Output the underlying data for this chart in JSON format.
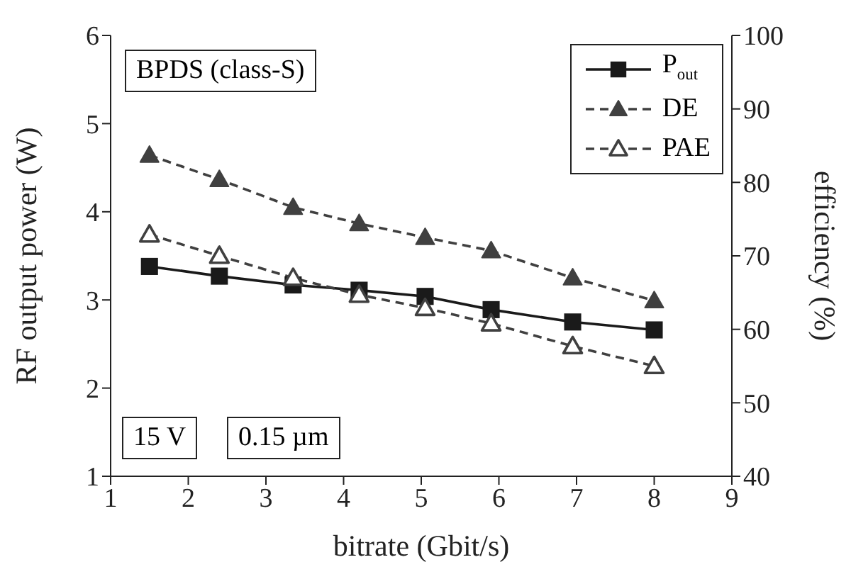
{
  "chart_data": {
    "type": "line",
    "xlabel": "bitrate (Gbit/s)",
    "ylabel": "RF output power (W)",
    "y2label": "efficiency (%)",
    "xlim": [
      1,
      9
    ],
    "xticks": [
      1,
      2,
      3,
      4,
      5,
      6,
      7,
      8,
      9
    ],
    "ylim": [
      1,
      6
    ],
    "yticks": [
      1,
      2,
      3,
      4,
      5,
      6
    ],
    "y2lim": [
      40,
      100
    ],
    "y2ticks": [
      40,
      50,
      60,
      70,
      80,
      90,
      100
    ],
    "x": [
      1.5,
      2.4,
      3.35,
      4.2,
      5.05,
      5.9,
      6.95,
      8
    ],
    "series": [
      {
        "name": "P$_{out}$",
        "color": "#1a1a1a",
        "marker": "square",
        "line_style": "solid",
        "values": [
          3.38,
          3.27,
          3.17,
          3.11,
          3.04,
          2.89,
          2.75,
          2.66
        ]
      },
      {
        "name": "DE",
        "color": "#404040",
        "marker": "triangle",
        "line_style": "dashed",
        "axis": "y2",
        "values": [
          83.7,
          80.4,
          76.6,
          74.4,
          72.5,
          70.7,
          67.0,
          63.9
        ]
      },
      {
        "name": "PAE",
        "color": "#404040",
        "marker": "triangle",
        "line_style": "dashed",
        "axis": "y2",
        "values": [
          72.9,
          70.0,
          67.0,
          64.7,
          62.9,
          60.8,
          57.7,
          55.0
        ]
      }
    ],
    "annotations": [
      "BPDS (class-S)",
      "15 V",
      "0.15 µm"
    ],
    "legend": "top right",
    "grid": false
  }
}
